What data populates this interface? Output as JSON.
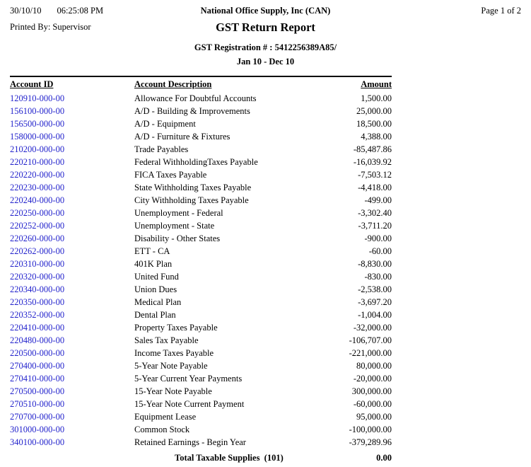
{
  "header": {
    "date": "30/10/10",
    "time": "06:25:08 PM",
    "company": "National Office Supply, Inc (CAN)",
    "page_number": "Page 1 of 2",
    "printed_by": "Printed By: Supervisor",
    "title": "GST Return Report",
    "registration": "GST Registration # : 5412256389A85/",
    "period": "Jan 10 - Dec 10"
  },
  "table": {
    "columns": [
      "Account ID",
      "Account Description",
      "Amount"
    ],
    "rows": [
      {
        "id": "120910-000-00",
        "description": "Allowance For Doubtful Accounts",
        "amount": "1,500.00"
      },
      {
        "id": "156100-000-00",
        "description": "A/D - Building & Improvements",
        "amount": "25,000.00"
      },
      {
        "id": "156500-000-00",
        "description": "A/D - Equipment",
        "amount": "18,500.00"
      },
      {
        "id": "158000-000-00",
        "description": "A/D - Furniture & Fixtures",
        "amount": "4,388.00"
      },
      {
        "id": "210200-000-00",
        "description": "Trade Payables",
        "amount": "-85,487.86"
      },
      {
        "id": "220210-000-00",
        "description": "Federal WithholdingTaxes Payable",
        "amount": "-16,039.92"
      },
      {
        "id": "220220-000-00",
        "description": "FICA Taxes Payable",
        "amount": "-7,503.12"
      },
      {
        "id": "220230-000-00",
        "description": "State Withholding Taxes Payable",
        "amount": "-4,418.00"
      },
      {
        "id": "220240-000-00",
        "description": "City Withholding Taxes Payable",
        "amount": "-499.00"
      },
      {
        "id": "220250-000-00",
        "description": "Unemployment - Federal",
        "amount": "-3,302.40"
      },
      {
        "id": "220252-000-00",
        "description": "Unemployment - State",
        "amount": "-3,711.20"
      },
      {
        "id": "220260-000-00",
        "description": "Disability - Other States",
        "amount": "-900.00"
      },
      {
        "id": "220262-000-00",
        "description": "ETT - CA",
        "amount": "-60.00"
      },
      {
        "id": "220310-000-00",
        "description": "401K Plan",
        "amount": "-8,830.00"
      },
      {
        "id": "220320-000-00",
        "description": "United Fund",
        "amount": "-830.00"
      },
      {
        "id": "220340-000-00",
        "description": "Union Dues",
        "amount": "-2,538.00"
      },
      {
        "id": "220350-000-00",
        "description": "Medical Plan",
        "amount": "-3,697.20"
      },
      {
        "id": "220352-000-00",
        "description": "Dental Plan",
        "amount": "-1,004.00"
      },
      {
        "id": "220410-000-00",
        "description": "Property Taxes Payable",
        "amount": "-32,000.00"
      },
      {
        "id": "220480-000-00",
        "description": "Sales Tax Payable",
        "amount": "-106,707.00"
      },
      {
        "id": "220500-000-00",
        "description": "Income Taxes Payable",
        "amount": "-221,000.00"
      },
      {
        "id": "270400-000-00",
        "description": "5-Year Note Payable",
        "amount": "80,000.00"
      },
      {
        "id": "270410-000-00",
        "description": "5-Year Current Year Payments",
        "amount": "-20,000.00"
      },
      {
        "id": "270500-000-00",
        "description": "15-Year Note Payable",
        "amount": "300,000.00"
      },
      {
        "id": "270510-000-00",
        "description": "15-Year Note Current Payment",
        "amount": "-60,000.00"
      },
      {
        "id": "270700-000-00",
        "description": "Equipment Lease",
        "amount": "95,000.00"
      },
      {
        "id": "301000-000-00",
        "description": "Common Stock",
        "amount": "-100,000.00"
      },
      {
        "id": "340100-000-00",
        "description": "Retained Earnings - Begin Year",
        "amount": "-379,289.96"
      }
    ],
    "total_label": "Total Taxable Supplies  (101)",
    "total_amount": "0.00"
  },
  "colors": {
    "link": "#2222cc",
    "text": "#000000"
  }
}
